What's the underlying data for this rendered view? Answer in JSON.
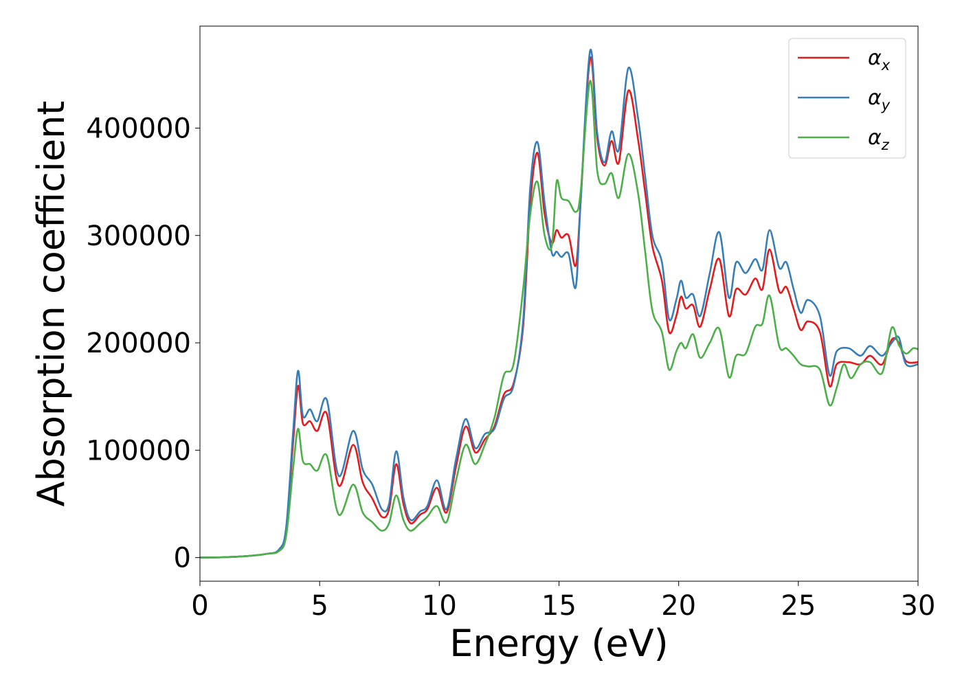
{
  "chart_data": {
    "type": "line",
    "title": "",
    "xlabel": "Energy (eV)",
    "ylabel": "Absorption coefficient",
    "xlim": [
      0,
      30
    ],
    "ylim": [
      -22000,
      495000
    ],
    "x_ticks": [
      0,
      5,
      10,
      15,
      20,
      25,
      30
    ],
    "y_ticks": [
      0,
      100000,
      200000,
      300000,
      400000
    ],
    "grid": false,
    "legend_position": "top-right",
    "series": [
      {
        "name": "α_x",
        "label_base": "α",
        "label_sub": "x",
        "color": "#e41a1c",
        "points": [
          [
            0,
            0
          ],
          [
            1,
            300
          ],
          [
            2,
            1500
          ],
          [
            2.8,
            3500
          ],
          [
            3.3,
            7000
          ],
          [
            3.6,
            25000
          ],
          [
            3.9,
            110000
          ],
          [
            4.1,
            160000
          ],
          [
            4.3,
            125000
          ],
          [
            4.6,
            127000
          ],
          [
            4.9,
            118000
          ],
          [
            5.3,
            134000
          ],
          [
            5.8,
            67000
          ],
          [
            6.4,
            105000
          ],
          [
            6.8,
            70000
          ],
          [
            7.2,
            55000
          ],
          [
            7.6,
            38000
          ],
          [
            7.9,
            45000
          ],
          [
            8.2,
            87000
          ],
          [
            8.5,
            50000
          ],
          [
            8.8,
            32000
          ],
          [
            9.2,
            40000
          ],
          [
            9.5,
            45000
          ],
          [
            9.9,
            65000
          ],
          [
            10.3,
            42000
          ],
          [
            10.7,
            85000
          ],
          [
            11.1,
            122000
          ],
          [
            11.5,
            98000
          ],
          [
            11.9,
            110000
          ],
          [
            12.3,
            122000
          ],
          [
            12.7,
            152000
          ],
          [
            13.1,
            162000
          ],
          [
            13.5,
            215000
          ],
          [
            13.8,
            330000
          ],
          [
            14.1,
            377000
          ],
          [
            14.4,
            320000
          ],
          [
            14.7,
            293000
          ],
          [
            14.9,
            305000
          ],
          [
            15.1,
            298000
          ],
          [
            15.4,
            300000
          ],
          [
            15.7,
            272000
          ],
          [
            15.9,
            330000
          ],
          [
            16.3,
            465000
          ],
          [
            16.6,
            390000
          ],
          [
            16.9,
            365000
          ],
          [
            17.2,
            388000
          ],
          [
            17.5,
            368000
          ],
          [
            17.9,
            435000
          ],
          [
            18.3,
            390000
          ],
          [
            18.6,
            340000
          ],
          [
            18.9,
            290000
          ],
          [
            19.3,
            258000
          ],
          [
            19.6,
            210000
          ],
          [
            19.9,
            225000
          ],
          [
            20.1,
            243000
          ],
          [
            20.3,
            232000
          ],
          [
            20.6,
            235000
          ],
          [
            20.9,
            215000
          ],
          [
            21.3,
            250000
          ],
          [
            21.7,
            278000
          ],
          [
            22.1,
            225000
          ],
          [
            22.4,
            250000
          ],
          [
            22.8,
            245000
          ],
          [
            23.2,
            260000
          ],
          [
            23.5,
            250000
          ],
          [
            23.8,
            287000
          ],
          [
            24.2,
            248000
          ],
          [
            24.5,
            252000
          ],
          [
            24.8,
            232000
          ],
          [
            25.1,
            212000
          ],
          [
            25.4,
            220000
          ],
          [
            25.9,
            210000
          ],
          [
            26.3,
            160000
          ],
          [
            26.6,
            180000
          ],
          [
            27.1,
            182000
          ],
          [
            27.6,
            180000
          ],
          [
            28,
            188000
          ],
          [
            28.5,
            180000
          ],
          [
            28.9,
            203000
          ],
          [
            29.2,
            200000
          ],
          [
            29.5,
            183000
          ],
          [
            30,
            182000
          ]
        ]
      },
      {
        "name": "α_y",
        "label_base": "α",
        "label_sub": "y",
        "color": "#377eb8",
        "points": [
          [
            0,
            0
          ],
          [
            1,
            300
          ],
          [
            2,
            1500
          ],
          [
            2.8,
            3500
          ],
          [
            3.3,
            7500
          ],
          [
            3.6,
            28000
          ],
          [
            3.9,
            120000
          ],
          [
            4.1,
            174000
          ],
          [
            4.3,
            132000
          ],
          [
            4.6,
            138000
          ],
          [
            4.9,
            127000
          ],
          [
            5.3,
            147000
          ],
          [
            5.8,
            76000
          ],
          [
            6.4,
            118000
          ],
          [
            6.8,
            82000
          ],
          [
            7.2,
            68000
          ],
          [
            7.6,
            45000
          ],
          [
            7.9,
            50000
          ],
          [
            8.2,
            99000
          ],
          [
            8.5,
            56000
          ],
          [
            8.8,
            35000
          ],
          [
            9.2,
            43000
          ],
          [
            9.5,
            48000
          ],
          [
            9.9,
            72000
          ],
          [
            10.3,
            45000
          ],
          [
            10.7,
            92000
          ],
          [
            11.1,
            129000
          ],
          [
            11.5,
            102000
          ],
          [
            11.9,
            115000
          ],
          [
            12.3,
            120000
          ],
          [
            12.7,
            148000
          ],
          [
            13.1,
            160000
          ],
          [
            13.5,
            220000
          ],
          [
            13.8,
            345000
          ],
          [
            14.1,
            387000
          ],
          [
            14.4,
            330000
          ],
          [
            14.7,
            284000
          ],
          [
            14.9,
            285000
          ],
          [
            15.1,
            280000
          ],
          [
            15.4,
            283000
          ],
          [
            15.7,
            252000
          ],
          [
            15.9,
            330000
          ],
          [
            16.3,
            472000
          ],
          [
            16.6,
            395000
          ],
          [
            16.9,
            368000
          ],
          [
            17.2,
            397000
          ],
          [
            17.5,
            380000
          ],
          [
            17.9,
            456000
          ],
          [
            18.3,
            410000
          ],
          [
            18.6,
            355000
          ],
          [
            18.9,
            300000
          ],
          [
            19.3,
            275000
          ],
          [
            19.6,
            222000
          ],
          [
            19.9,
            240000
          ],
          [
            20.1,
            258000
          ],
          [
            20.3,
            242000
          ],
          [
            20.6,
            245000
          ],
          [
            20.9,
            225000
          ],
          [
            21.3,
            265000
          ],
          [
            21.7,
            303000
          ],
          [
            22.1,
            242000
          ],
          [
            22.4,
            275000
          ],
          [
            22.8,
            265000
          ],
          [
            23.2,
            278000
          ],
          [
            23.5,
            268000
          ],
          [
            23.8,
            305000
          ],
          [
            24.2,
            270000
          ],
          [
            24.5,
            275000
          ],
          [
            24.8,
            250000
          ],
          [
            25.1,
            228000
          ],
          [
            25.4,
            240000
          ],
          [
            25.9,
            225000
          ],
          [
            26.3,
            170000
          ],
          [
            26.6,
            192000
          ],
          [
            27.1,
            195000
          ],
          [
            27.6,
            188000
          ],
          [
            28,
            197000
          ],
          [
            28.5,
            188000
          ],
          [
            28.9,
            200000
          ],
          [
            29.2,
            205000
          ],
          [
            29.5,
            180000
          ],
          [
            30,
            180000
          ]
        ]
      },
      {
        "name": "α_z",
        "label_base": "α",
        "label_sub": "z",
        "color": "#4daf4a",
        "points": [
          [
            0,
            0
          ],
          [
            1,
            300
          ],
          [
            2,
            1500
          ],
          [
            2.8,
            3500
          ],
          [
            3.3,
            6000
          ],
          [
            3.6,
            20000
          ],
          [
            3.9,
            85000
          ],
          [
            4.1,
            120000
          ],
          [
            4.3,
            90000
          ],
          [
            4.6,
            87000
          ],
          [
            4.9,
            81000
          ],
          [
            5.3,
            95000
          ],
          [
            5.8,
            40000
          ],
          [
            6.4,
            68000
          ],
          [
            6.8,
            42000
          ],
          [
            7.2,
            33000
          ],
          [
            7.6,
            25000
          ],
          [
            7.9,
            32000
          ],
          [
            8.2,
            58000
          ],
          [
            8.5,
            35000
          ],
          [
            8.8,
            25000
          ],
          [
            9.2,
            32000
          ],
          [
            9.5,
            38000
          ],
          [
            9.9,
            48000
          ],
          [
            10.3,
            33000
          ],
          [
            10.7,
            72000
          ],
          [
            11.1,
            105000
          ],
          [
            11.5,
            87000
          ],
          [
            11.9,
            105000
          ],
          [
            12.3,
            130000
          ],
          [
            12.7,
            170000
          ],
          [
            13.1,
            180000
          ],
          [
            13.5,
            250000
          ],
          [
            13.8,
            320000
          ],
          [
            14.1,
            350000
          ],
          [
            14.4,
            300000
          ],
          [
            14.7,
            290000
          ],
          [
            14.9,
            350000
          ],
          [
            15.1,
            335000
          ],
          [
            15.4,
            332000
          ],
          [
            15.7,
            322000
          ],
          [
            15.9,
            340000
          ],
          [
            16.3,
            444000
          ],
          [
            16.6,
            360000
          ],
          [
            16.9,
            348000
          ],
          [
            17.2,
            358000
          ],
          [
            17.5,
            335000
          ],
          [
            17.9,
            376000
          ],
          [
            18.3,
            340000
          ],
          [
            18.6,
            285000
          ],
          [
            18.9,
            230000
          ],
          [
            19.3,
            210000
          ],
          [
            19.6,
            175000
          ],
          [
            19.9,
            192000
          ],
          [
            20.1,
            200000
          ],
          [
            20.3,
            195000
          ],
          [
            20.6,
            208000
          ],
          [
            20.9,
            186000
          ],
          [
            21.3,
            200000
          ],
          [
            21.7,
            213000
          ],
          [
            22.1,
            168000
          ],
          [
            22.4,
            188000
          ],
          [
            22.8,
            190000
          ],
          [
            23.2,
            215000
          ],
          [
            23.5,
            218000
          ],
          [
            23.8,
            244000
          ],
          [
            24.2,
            197000
          ],
          [
            24.5,
            195000
          ],
          [
            24.8,
            188000
          ],
          [
            25.1,
            180000
          ],
          [
            25.4,
            178000
          ],
          [
            25.9,
            175000
          ],
          [
            26.3,
            142000
          ],
          [
            26.6,
            158000
          ],
          [
            26.9,
            180000
          ],
          [
            27.2,
            167000
          ],
          [
            27.6,
            180000
          ],
          [
            28,
            182000
          ],
          [
            28.5,
            172000
          ],
          [
            28.9,
            214000
          ],
          [
            29.2,
            198000
          ],
          [
            29.5,
            190000
          ],
          [
            29.8,
            195000
          ],
          [
            30,
            194000
          ]
        ]
      }
    ]
  }
}
